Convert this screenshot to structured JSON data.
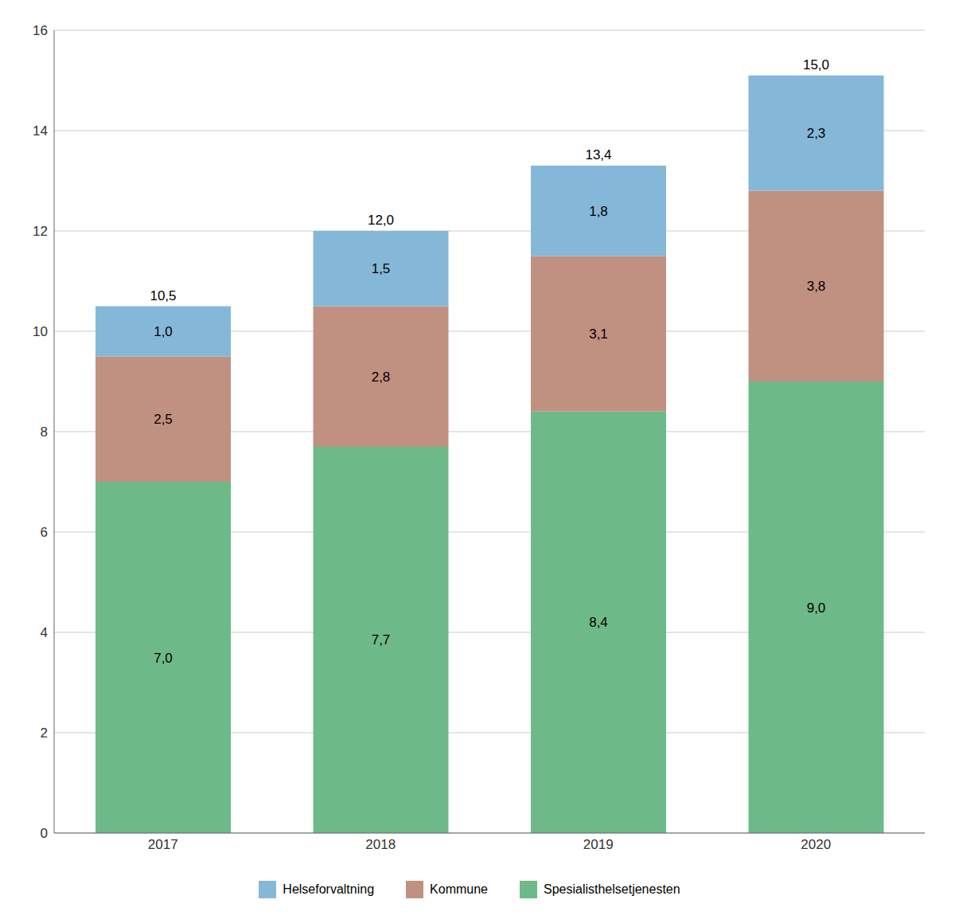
{
  "chart_data": {
    "type": "bar",
    "stacked": true,
    "categories": [
      "2017",
      "2018",
      "2019",
      "2020"
    ],
    "series": [
      {
        "name": "Spesialisthelsetjenesten",
        "color": "#6dba88",
        "values": [
          7.0,
          7.7,
          8.4,
          9.0
        ],
        "value_labels": [
          "7,0",
          "7,7",
          "8,4",
          "9,0"
        ]
      },
      {
        "name": "Kommune",
        "color": "#c09080",
        "values": [
          2.5,
          2.8,
          3.1,
          3.8
        ],
        "value_labels": [
          "2,5",
          "2,8",
          "3,1",
          "3,8"
        ]
      },
      {
        "name": "Helseforvaltning",
        "color": "#85b8d8",
        "values": [
          1.0,
          1.5,
          1.8,
          2.3
        ],
        "value_labels": [
          "1,0",
          "1,5",
          "1,8",
          "2,3"
        ]
      }
    ],
    "totals": [
      10.5,
      12.0,
      13.4,
      15.0
    ],
    "total_labels": [
      "10,5",
      "12,0",
      "13,4",
      "15,0"
    ],
    "ylim": [
      0,
      16
    ],
    "yticks": [
      0,
      2,
      4,
      6,
      8,
      10,
      12,
      14,
      16
    ],
    "grid": true,
    "legend": "bottom",
    "data_labels": true
  }
}
